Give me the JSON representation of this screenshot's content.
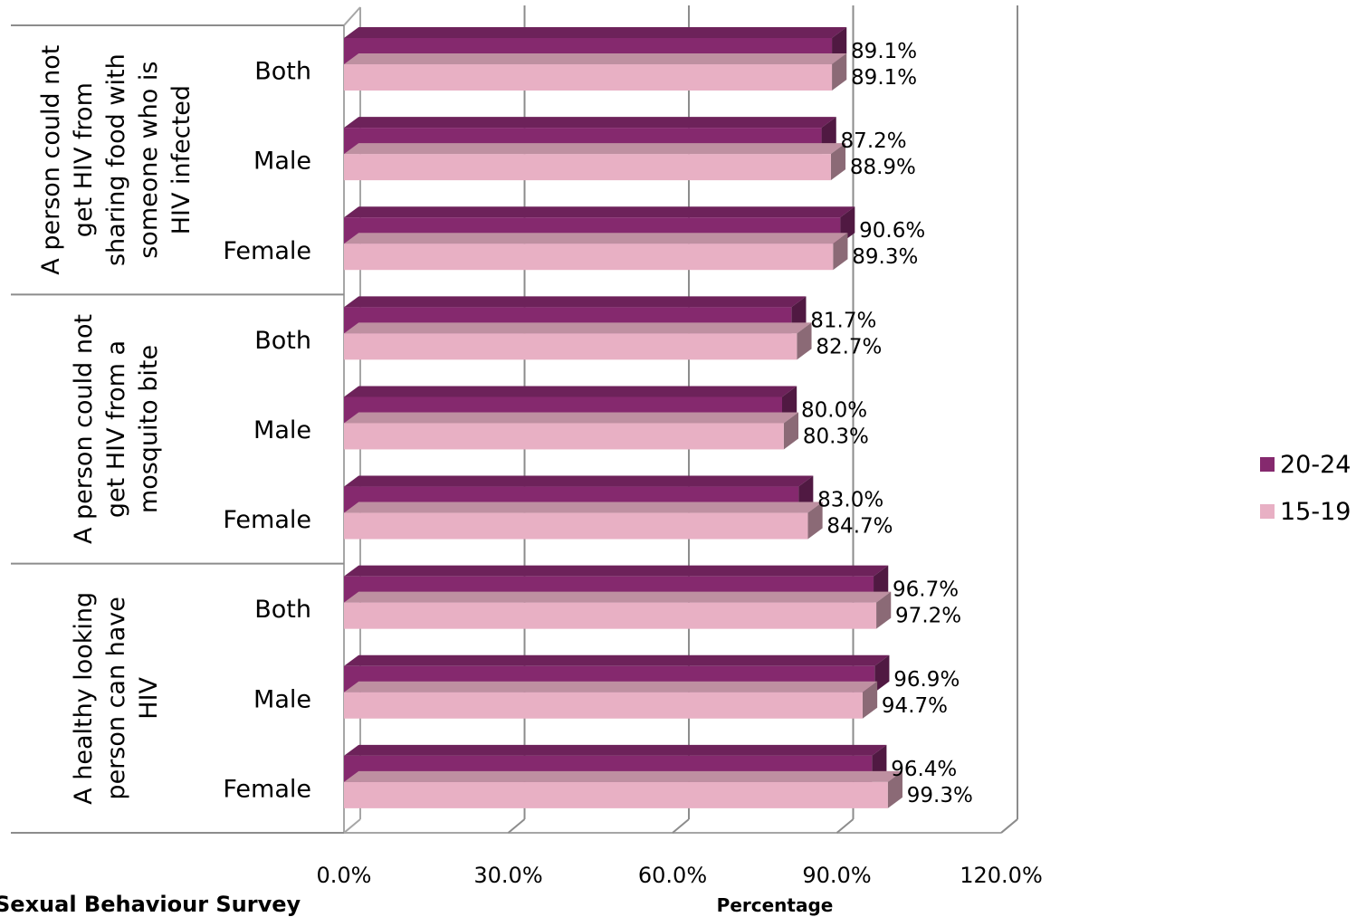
{
  "chart_data": {
    "type": "bar",
    "orientation": "horizontal",
    "xlabel": "Percentage",
    "xlim": [
      0,
      120
    ],
    "x_ticks": [
      "0.0%",
      "30.0%",
      "60.0%",
      "90.0%",
      "120.0%"
    ],
    "grid": true,
    "legend_position": "right",
    "footer_text": "Sexual Behaviour Survey",
    "groups": [
      {
        "label": "A person could not get HIV from sharing food with someone who is HIV infected",
        "label_lines": [
          "A person could not",
          "get HIV from",
          "sharing food with",
          "someone who is",
          "HIV infected"
        ],
        "categories": [
          "Both",
          "Male",
          "Female"
        ]
      },
      {
        "label": "A person could not get HIV from a mosquito bite",
        "label_lines": [
          "A person could not",
          "get HIV from a",
          "mosquito bite"
        ],
        "categories": [
          "Both",
          "Male",
          "Female"
        ]
      },
      {
        "label": "A healthy looking person can have HIV",
        "label_lines": [
          "A healthy looking",
          "person can have",
          "HIV"
        ],
        "categories": [
          "Both",
          "Male",
          "Female"
        ]
      }
    ],
    "series": [
      {
        "name": "20-24",
        "color": "#85296e",
        "values": [
          89.1,
          87.2,
          90.6,
          81.7,
          80.0,
          83.0,
          96.7,
          96.9,
          96.4
        ],
        "labels": [
          "89.1%",
          "87.2%",
          "90.6%",
          "81.7%",
          "80.0%",
          "83.0%",
          "96.7%",
          "96.9%",
          "96.4%"
        ]
      },
      {
        "name": "15-19",
        "color": "#e8b0c4",
        "values": [
          89.1,
          88.9,
          89.3,
          82.7,
          80.3,
          84.7,
          97.2,
          94.7,
          99.3
        ],
        "labels": [
          "89.1%",
          "88.9%",
          "89.3%",
          "82.7%",
          "80.3%",
          "84.7%",
          "97.2%",
          "94.7%",
          "99.3%"
        ]
      }
    ]
  }
}
